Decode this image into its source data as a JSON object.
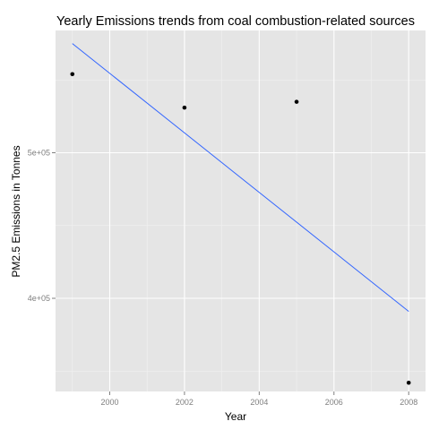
{
  "chart_data": {
    "type": "scatter",
    "title": "Yearly Emissions trends from coal combustion-related sources",
    "xlabel": "Year",
    "ylabel": "PM2.5 Emissions in Tonnes",
    "xlim": [
      1998.55,
      2008.45
    ],
    "ylim": [
      336000,
      584000
    ],
    "x_ticks": [
      2000,
      2002,
      2004,
      2006,
      2008
    ],
    "x_tick_labels": [
      "2000",
      "2002",
      "2004",
      "2006",
      "2008"
    ],
    "y_ticks": [
      400000,
      500000
    ],
    "y_tick_labels": [
      "4e+05",
      "5e+05"
    ],
    "grid": true,
    "series": [
      {
        "kind": "points",
        "x": [
          1999,
          2002,
          2005,
          2008
        ],
        "y": [
          554000,
          531000,
          535000,
          342000
        ],
        "color": "#000000"
      },
      {
        "kind": "trend-line",
        "x": [
          1999,
          2008
        ],
        "y": [
          575000,
          391000
        ],
        "color": "#3366FF"
      }
    ],
    "colors": {
      "panel_background": "#E5E5E5",
      "grid_major": "#FFFFFF",
      "grid_minor": "#F2F2F2",
      "tick_label": "#7F7F7F"
    }
  }
}
